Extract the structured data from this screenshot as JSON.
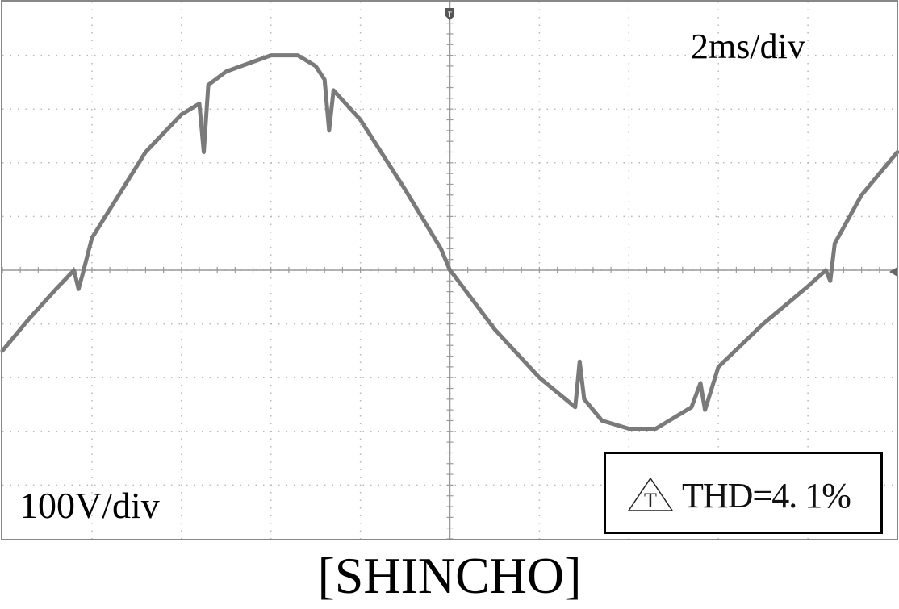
{
  "chart_data": {
    "type": "line",
    "title": "",
    "xlabel": "",
    "ylabel": "",
    "divisions": {
      "x": 10,
      "y": 10
    },
    "xlim": [
      0,
      10
    ],
    "ylim": [
      -5,
      5
    ],
    "grid": true,
    "trace_color": "#7a7a7a",
    "grid_color": "#b8b8b8",
    "series": [
      {
        "x": [
          0.0,
          0.3,
          0.6,
          0.8,
          0.85,
          0.9,
          1.0,
          1.3,
          1.6,
          2.0,
          2.2,
          2.25,
          2.3,
          2.5,
          3.0,
          3.3,
          3.5,
          3.6,
          3.65,
          3.7,
          4.0,
          4.5,
          4.9,
          5.0,
          5.05,
          5.5,
          6.0,
          6.4,
          6.45,
          6.5,
          6.7,
          7.0,
          7.3,
          7.7,
          7.8,
          7.85,
          8.0,
          8.5,
          9.0,
          9.2,
          9.25,
          9.3,
          9.6,
          10.0
        ],
        "y": [
          -1.5,
          -0.9,
          -0.35,
          0.0,
          -0.35,
          -0.05,
          0.6,
          1.4,
          2.2,
          2.9,
          3.1,
          2.2,
          3.45,
          3.7,
          4.0,
          4.0,
          3.8,
          3.55,
          2.6,
          3.35,
          2.8,
          1.5,
          0.4,
          0.0,
          -0.1,
          -1.1,
          -2.0,
          -2.55,
          -1.7,
          -2.4,
          -2.8,
          -2.95,
          -2.95,
          -2.55,
          -2.1,
          -2.6,
          -1.8,
          -1.0,
          -0.3,
          0.0,
          -0.2,
          0.5,
          1.4,
          2.2
        ]
      }
    ],
    "annotations": {
      "timebase": "2ms/div",
      "volt_scale": "100V/div",
      "thd_symbol": "T",
      "thd": "THD=4. 1%",
      "caption": "[SHINCHO]"
    }
  }
}
